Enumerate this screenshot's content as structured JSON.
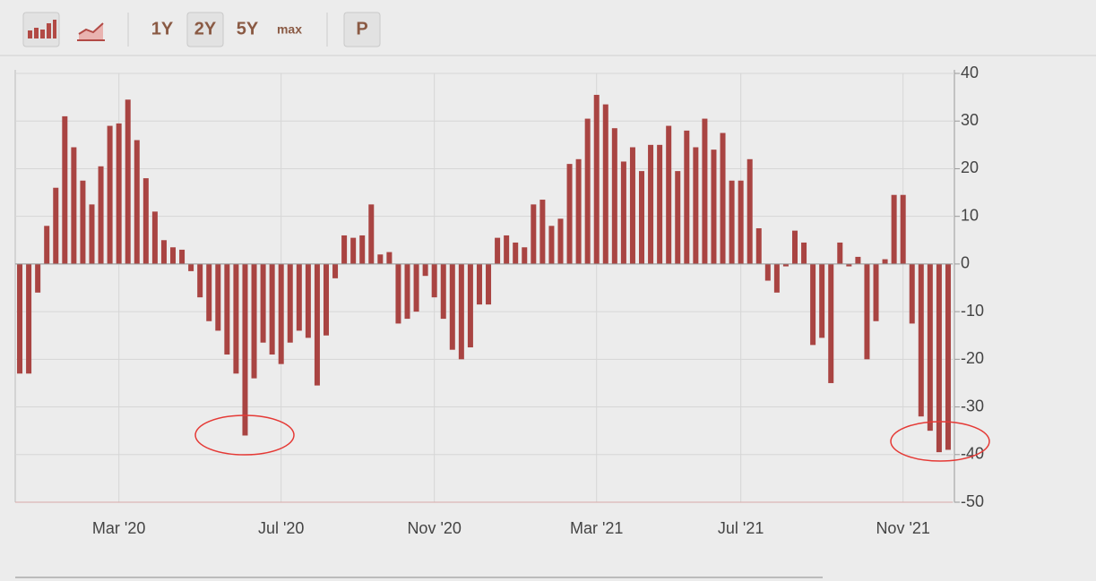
{
  "toolbar": {
    "ranges": [
      "1Y",
      "2Y",
      "5Y",
      "max"
    ],
    "selected_range": "2Y",
    "extra": "P"
  },
  "chart_data": {
    "type": "bar",
    "color": "#a94442",
    "categories": [
      null,
      null,
      null,
      null,
      null,
      null,
      null,
      null,
      null,
      null,
      null,
      "Mar '20",
      null,
      null,
      null,
      null,
      null,
      null,
      null,
      null,
      null,
      null,
      null,
      null,
      null,
      null,
      null,
      null,
      null,
      "Jul '20",
      null,
      null,
      null,
      null,
      null,
      null,
      null,
      null,
      null,
      null,
      null,
      null,
      null,
      null,
      null,
      null,
      "Nov '20",
      null,
      null,
      null,
      null,
      null,
      null,
      null,
      null,
      null,
      null,
      null,
      null,
      null,
      null,
      null,
      null,
      null,
      "Mar '21",
      null,
      null,
      null,
      null,
      null,
      null,
      null,
      null,
      null,
      null,
      null,
      null,
      null,
      null,
      null,
      "Jul '21",
      null,
      null,
      null,
      null,
      null,
      null,
      null,
      null,
      null,
      null,
      null,
      null,
      null,
      null,
      null,
      null,
      null,
      "Nov '21",
      null,
      null,
      null,
      null,
      null
    ],
    "values": [
      -23,
      -23,
      -6,
      8,
      16,
      31,
      24.5,
      17.5,
      12.5,
      20.5,
      29,
      29.5,
      34.5,
      26,
      18,
      11,
      5,
      3.5,
      3,
      -1.5,
      -7,
      -12,
      -14,
      -19,
      -23,
      -36,
      -24,
      -16.5,
      -19,
      -21,
      -16.5,
      -14,
      -15.5,
      -25.5,
      -15,
      -3,
      6,
      5.5,
      6,
      12.5,
      2,
      2.5,
      -12.5,
      -11.5,
      -10,
      -2.5,
      -7,
      -11.5,
      -18,
      -20,
      -17.5,
      -8.5,
      -8.5,
      5.5,
      6,
      4.5,
      3.5,
      12.5,
      13.5,
      8,
      9.5,
      21,
      22,
      30.5,
      35.5,
      33.5,
      28.5,
      21.5,
      24.5,
      19.5,
      25,
      25,
      29,
      19.5,
      28,
      24.5,
      30.5,
      24,
      27.5,
      17.5,
      17.5,
      22,
      7.5,
      -3.5,
      -6,
      -0.5,
      7,
      4.5,
      -17,
      -15.5,
      -25,
      4.5,
      -0.5,
      1.5,
      -20,
      -12,
      1,
      14.5,
      14.5,
      -12.5,
      -32,
      -35,
      -39.5,
      -39
    ],
    "ylim": [
      -50,
      40
    ],
    "yticks": [
      40,
      30,
      20,
      10,
      0,
      -10,
      -20,
      -30,
      -40,
      -50
    ],
    "grid": true
  }
}
